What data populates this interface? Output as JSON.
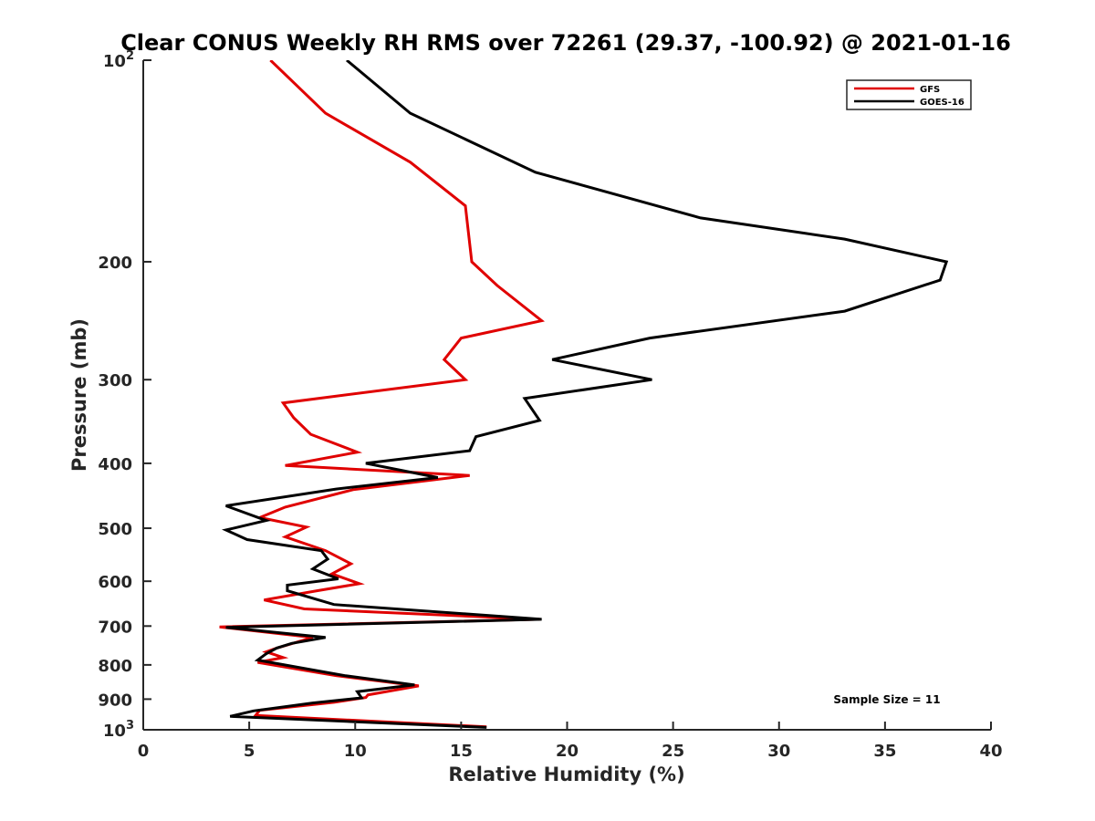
{
  "chart_data": {
    "type": "line",
    "title": "Clear CONUS Weekly RH RMS over 72261 (29.37, -100.92) @ 2021-01-16",
    "xlabel": "Relative Humidity (%)",
    "ylabel": "Pressure (mb)",
    "xlim": [
      0,
      40
    ],
    "ylim": [
      100,
      1000
    ],
    "y_scale": "log",
    "y_reversed": true,
    "grid": false,
    "legend_position": "top-right",
    "annotation": "Sample Size = 11",
    "x_ticks": [
      "0",
      "5",
      "10",
      "15",
      "20",
      "25",
      "30",
      "35",
      "40"
    ],
    "y_ticks": [
      {
        "value": 100,
        "base": "10",
        "exp": "2"
      },
      {
        "value": 200,
        "label": "200"
      },
      {
        "value": 300,
        "label": "300"
      },
      {
        "value": 400,
        "label": "400"
      },
      {
        "value": 500,
        "label": "500"
      },
      {
        "value": 600,
        "label": "600"
      },
      {
        "value": 700,
        "label": "700"
      },
      {
        "value": 800,
        "label": "800"
      },
      {
        "value": 900,
        "label": "900"
      },
      {
        "value": 1000,
        "base": "10",
        "exp": "3"
      }
    ],
    "series": [
      {
        "name": "GFS",
        "color": "#e00000",
        "points": [
          [
            6.0,
            100
          ],
          [
            8.6,
            120
          ],
          [
            12.6,
            142
          ],
          [
            15.2,
            165
          ],
          [
            15.5,
            200
          ],
          [
            16.7,
            217
          ],
          [
            18.8,
            245
          ],
          [
            15.0,
            260
          ],
          [
            14.2,
            280
          ],
          [
            15.2,
            300
          ],
          [
            6.6,
            325
          ],
          [
            7.1,
            342
          ],
          [
            7.9,
            362
          ],
          [
            10.1,
            385
          ],
          [
            6.7,
            403
          ],
          [
            15.4,
            417
          ],
          [
            9.9,
            438
          ],
          [
            6.7,
            465
          ],
          [
            5.5,
            482
          ],
          [
            7.7,
            498
          ],
          [
            6.7,
            515
          ],
          [
            8.6,
            540
          ],
          [
            9.8,
            565
          ],
          [
            8.9,
            585
          ],
          [
            10.2,
            605
          ],
          [
            8.2,
            620
          ],
          [
            5.7,
            640
          ],
          [
            7.6,
            660
          ],
          [
            18.7,
            684
          ],
          [
            3.6,
            702
          ],
          [
            8.0,
            728
          ],
          [
            6.3,
            755
          ],
          [
            5.8,
            765
          ],
          [
            6.6,
            780
          ],
          [
            5.4,
            793
          ],
          [
            9.1,
            830
          ],
          [
            13.0,
            860
          ],
          [
            10.6,
            887
          ],
          [
            10.5,
            895
          ],
          [
            9.0,
            910
          ],
          [
            5.5,
            935
          ],
          [
            5.3,
            952
          ],
          [
            16.2,
            990
          ]
        ]
      },
      {
        "name": "GOES-16",
        "color": "#000000",
        "points": [
          [
            9.6,
            100
          ],
          [
            12.6,
            120
          ],
          [
            18.5,
            147
          ],
          [
            26.3,
            172
          ],
          [
            33.1,
            185
          ],
          [
            37.9,
            200
          ],
          [
            37.6,
            213
          ],
          [
            33.1,
            237
          ],
          [
            23.9,
            260
          ],
          [
            19.3,
            280
          ],
          [
            24.0,
            300
          ],
          [
            18.0,
            320
          ],
          [
            18.7,
            345
          ],
          [
            15.7,
            365
          ],
          [
            15.4,
            383
          ],
          [
            10.5,
            400
          ],
          [
            13.9,
            420
          ],
          [
            9.1,
            437
          ],
          [
            3.9,
            463
          ],
          [
            5.8,
            487
          ],
          [
            3.9,
            503
          ],
          [
            4.9,
            520
          ],
          [
            8.4,
            540
          ],
          [
            8.7,
            556
          ],
          [
            8.0,
            575
          ],
          [
            9.2,
            595
          ],
          [
            6.8,
            608
          ],
          [
            6.8,
            620
          ],
          [
            9.0,
            650
          ],
          [
            18.8,
            684
          ],
          [
            3.9,
            703
          ],
          [
            8.6,
            728
          ],
          [
            7.0,
            743
          ],
          [
            6.3,
            755
          ],
          [
            5.8,
            770
          ],
          [
            5.4,
            787
          ],
          [
            9.5,
            830
          ],
          [
            12.8,
            857
          ],
          [
            10.1,
            877
          ],
          [
            10.3,
            896
          ],
          [
            8.0,
            912
          ],
          [
            5.2,
            937
          ],
          [
            4.1,
            955
          ],
          [
            16.2,
            992
          ]
        ]
      }
    ]
  }
}
